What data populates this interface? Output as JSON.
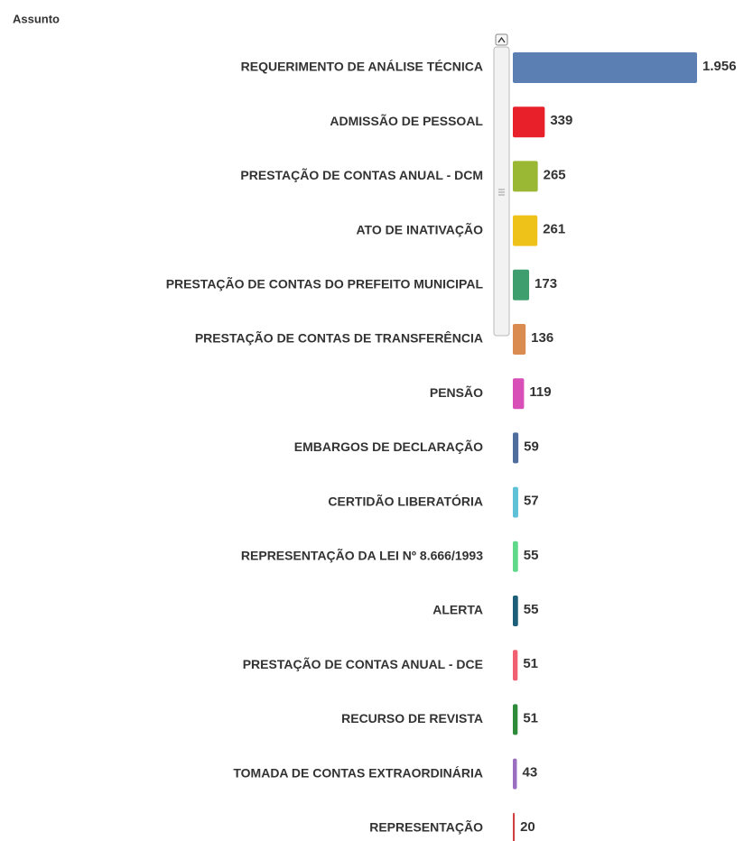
{
  "chart_data": {
    "type": "bar",
    "orientation": "horizontal",
    "title": "Assunto",
    "categories": [
      "REQUERIMENTO DE ANÁLISE TÉCNICA",
      "ADMISSÃO DE PESSOAL",
      "PRESTAÇÃO DE CONTAS ANUAL - DCM",
      "ATO DE INATIVAÇÃO",
      "PRESTAÇÃO DE CONTAS DO PREFEITO MUNICIPAL",
      "PRESTAÇÃO DE CONTAS DE TRANSFERÊNCIA",
      "PENSÃO",
      "EMBARGOS DE DECLARAÇÃO",
      "CERTIDÃO LIBERATÓRIA",
      "REPRESENTAÇÃO DA LEI Nº 8.666/1993",
      "ALERTA",
      "PRESTAÇÃO DE CONTAS ANUAL - DCE",
      "RECURSO DE REVISTA",
      "TOMADA DE CONTAS EXTRAORDINÁRIA",
      "REPRESENTAÇÃO"
    ],
    "values": [
      1956,
      339,
      265,
      261,
      173,
      136,
      119,
      59,
      57,
      55,
      55,
      51,
      51,
      43,
      20
    ],
    "value_labels": [
      "1.956",
      "339",
      "265",
      "261",
      "173",
      "136",
      "119",
      "59",
      "57",
      "55",
      "55",
      "51",
      "51",
      "43",
      "20"
    ],
    "colors": [
      "#5b7fb3",
      "#e8202a",
      "#9ab833",
      "#efc21a",
      "#3f9e6e",
      "#d98b50",
      "#d94fb8",
      "#4f6e9e",
      "#5fc1d8",
      "#5fd88a",
      "#1d5e78",
      "#f06070",
      "#2e8b3a",
      "#9a6fc0",
      "#d04040"
    ]
  }
}
